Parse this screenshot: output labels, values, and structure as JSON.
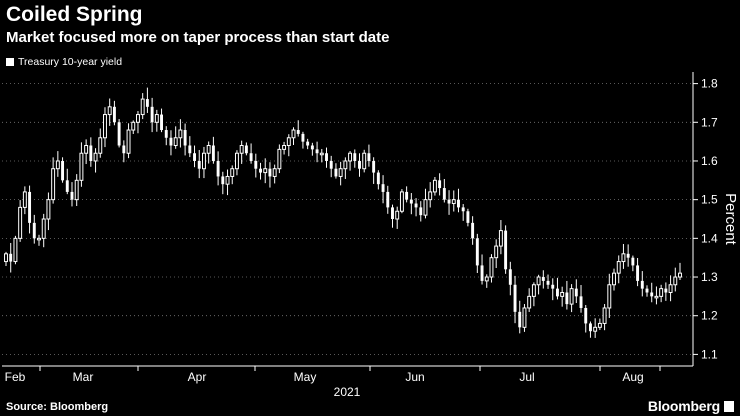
{
  "chart_data": {
    "type": "candlestick",
    "title": "Coiled Spring",
    "subtitle": "Market focused more on taper process than start date",
    "legend": [
      "Treasury 10-year yield"
    ],
    "legend_placement": "top-left",
    "ylabel": "Percent",
    "ylim": [
      1.07,
      1.83
    ],
    "y_ticks": [
      1.1,
      1.2,
      1.3,
      1.4,
      1.5,
      1.6,
      1.7,
      1.8
    ],
    "y_tick_labels": [
      "1.1",
      "1.2",
      "1.3",
      "1.4",
      "1.5",
      "1.6",
      "1.7",
      "1.8"
    ],
    "x_year_label": "2021",
    "x_months": [
      "Feb",
      "Mar",
      "Apr",
      "May",
      "Jun",
      "Jul",
      "Aug"
    ],
    "grid": "horizontal dotted",
    "candle_color": "#ffffff",
    "series": [
      {
        "name": "Treasury 10-year yield",
        "closes": [
          1.36,
          1.34,
          1.4,
          1.48,
          1.52,
          1.44,
          1.4,
          1.4,
          1.45,
          1.5,
          1.58,
          1.6,
          1.55,
          1.52,
          1.5,
          1.55,
          1.62,
          1.64,
          1.6,
          1.62,
          1.66,
          1.72,
          1.74,
          1.7,
          1.64,
          1.62,
          1.68,
          1.7,
          1.72,
          1.76,
          1.74,
          1.7,
          1.72,
          1.68,
          1.66,
          1.64,
          1.66,
          1.68,
          1.64,
          1.62,
          1.6,
          1.58,
          1.62,
          1.64,
          1.6,
          1.56,
          1.54,
          1.56,
          1.58,
          1.62,
          1.64,
          1.62,
          1.6,
          1.58,
          1.57,
          1.58,
          1.56,
          1.58,
          1.63,
          1.64,
          1.66,
          1.68,
          1.67,
          1.65,
          1.64,
          1.63,
          1.62,
          1.62,
          1.6,
          1.58,
          1.56,
          1.58,
          1.6,
          1.62,
          1.6,
          1.58,
          1.62,
          1.6,
          1.57,
          1.54,
          1.52,
          1.48,
          1.45,
          1.47,
          1.52,
          1.5,
          1.49,
          1.48,
          1.46,
          1.5,
          1.52,
          1.55,
          1.53,
          1.5,
          1.49,
          1.5,
          1.48,
          1.47,
          1.44,
          1.4,
          1.33,
          1.29,
          1.3,
          1.35,
          1.38,
          1.42,
          1.32,
          1.28,
          1.21,
          1.17,
          1.22,
          1.25,
          1.28,
          1.3,
          1.29,
          1.28,
          1.27,
          1.25,
          1.26,
          1.23,
          1.27,
          1.25,
          1.22,
          1.18,
          1.16,
          1.17,
          1.18,
          1.22,
          1.28,
          1.31,
          1.34,
          1.36,
          1.35,
          1.33,
          1.29,
          1.27,
          1.26,
          1.25,
          1.25,
          1.27,
          1.26,
          1.28,
          1.3,
          1.31
        ]
      }
    ]
  },
  "source": "Source: Bloomberg",
  "brand": "Bloomberg"
}
